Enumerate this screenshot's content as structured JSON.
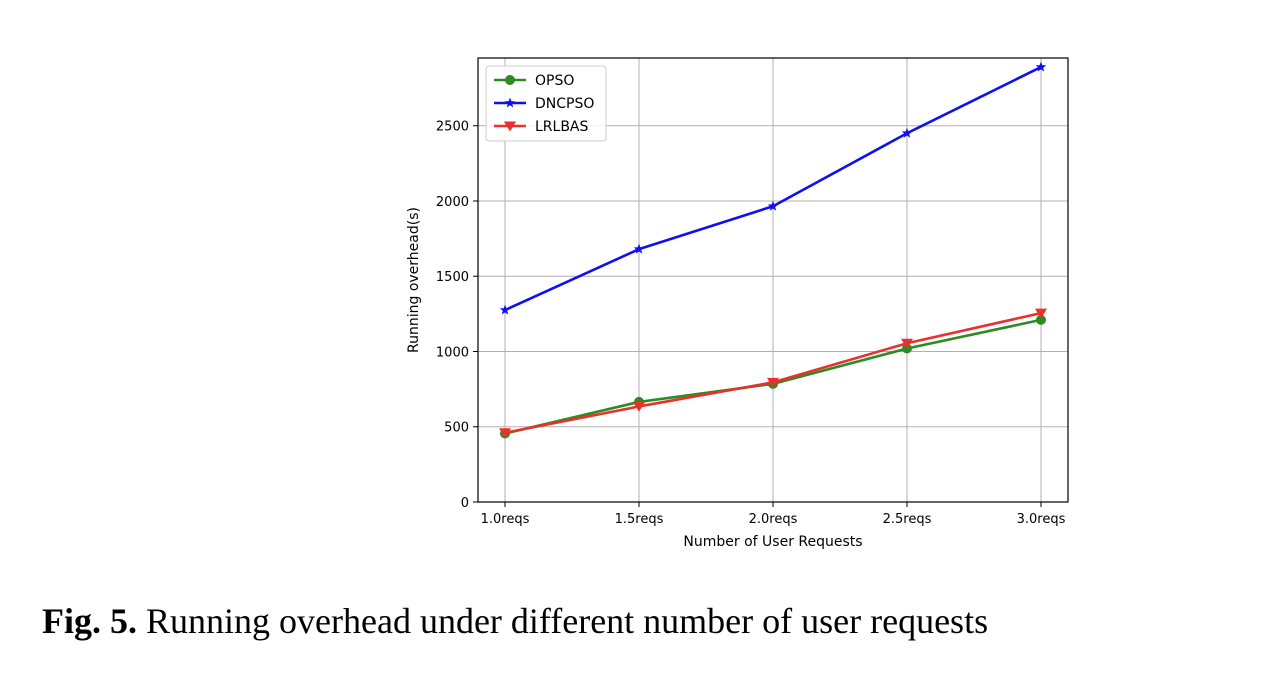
{
  "chart_data": {
    "type": "line",
    "categories": [
      "1.0reqs",
      "1.5reqs",
      "2.0reqs",
      "2.5reqs",
      "3.0reqs"
    ],
    "xlabel": "Number of User Requests",
    "ylabel": "Running overhead(s)",
    "ylim": [
      0,
      2950
    ],
    "yticks": [
      0,
      500,
      1000,
      1500,
      2000,
      2500
    ],
    "grid": true,
    "legend_position": "top-left",
    "series": [
      {
        "name": "OPSO",
        "color": "#2e8b22",
        "marker": "circle",
        "values": [
          455,
          665,
          785,
          1020,
          1210
        ]
      },
      {
        "name": "DNCPSO",
        "color": "#1010ee",
        "marker": "star",
        "values": [
          1275,
          1680,
          1965,
          2450,
          2890
        ]
      },
      {
        "name": "LRLBAS",
        "color": "#e8302c",
        "marker": "triangle-down",
        "values": [
          460,
          635,
          795,
          1055,
          1255
        ]
      }
    ]
  },
  "caption": {
    "label": "Fig. 5.",
    "text": "Running overhead under different number of user requests"
  }
}
